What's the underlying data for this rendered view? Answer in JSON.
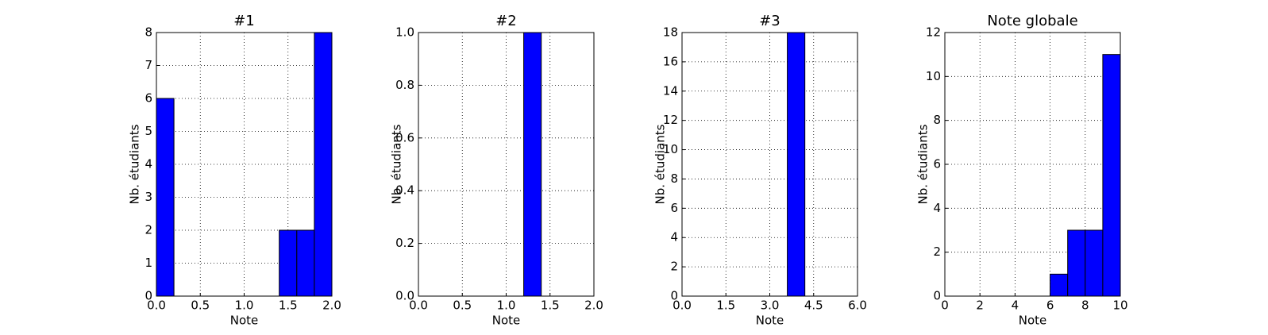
{
  "chart_data": [
    {
      "type": "histogram",
      "title": "#1",
      "xlabel": "Note",
      "ylabel": "Nb. étudiants",
      "bins": [
        0,
        0.2,
        0.4,
        0.6,
        0.8,
        1.0,
        1.2,
        1.4,
        1.6,
        1.8,
        2.0
      ],
      "values": [
        6,
        0,
        0,
        0,
        0,
        0,
        0,
        2,
        2,
        8
      ],
      "color": "#0000ff",
      "xlim": [
        0,
        2
      ],
      "ylim": [
        0,
        8
      ],
      "xticks": [
        {
          "value": 0,
          "label": "0.0"
        },
        {
          "value": 0.5,
          "label": "0.5"
        },
        {
          "value": 1,
          "label": "1.0"
        },
        {
          "value": 1.5,
          "label": "1.5"
        },
        {
          "value": 2,
          "label": "2.0"
        }
      ],
      "yticks": [
        0,
        1,
        2,
        3,
        4,
        5,
        6,
        7,
        8
      ],
      "grid": true
    },
    {
      "type": "histogram",
      "title": "#2",
      "xlabel": "Note",
      "ylabel": "Nb. étudiants",
      "bins": [
        0,
        0.2,
        0.4,
        0.6,
        0.8,
        1.0,
        1.2,
        1.4,
        1.6,
        1.8,
        2.0
      ],
      "values": [
        0,
        0,
        0,
        0,
        0,
        0,
        1,
        0,
        0,
        0
      ],
      "color": "#0000ff",
      "xlim": [
        0,
        2
      ],
      "ylim": [
        0,
        1
      ],
      "xticks": [
        {
          "value": 0,
          "label": "0.0"
        },
        {
          "value": 0.5,
          "label": "0.5"
        },
        {
          "value": 1,
          "label": "1.0"
        },
        {
          "value": 1.5,
          "label": "1.5"
        },
        {
          "value": 2,
          "label": "2.0"
        }
      ],
      "yticks": [
        {
          "value": 0,
          "label": "0.0"
        },
        {
          "value": 0.2,
          "label": "0.2"
        },
        {
          "value": 0.4,
          "label": "0.4"
        },
        {
          "value": 0.6,
          "label": "0.6"
        },
        {
          "value": 0.8,
          "label": "0.8"
        },
        {
          "value": 1,
          "label": "1.0"
        }
      ],
      "grid": true
    },
    {
      "type": "histogram",
      "title": "#3",
      "xlabel": "Note",
      "ylabel": "Nb. étudiants",
      "bins": [
        0,
        0.6,
        1.2,
        1.8,
        2.4,
        3.0,
        3.6,
        4.2,
        4.8,
        5.4,
        6.0
      ],
      "values": [
        0,
        0,
        0,
        0,
        0,
        0,
        18,
        0,
        0,
        0
      ],
      "color": "#0000ff",
      "xlim": [
        0,
        6
      ],
      "ylim": [
        0,
        18
      ],
      "xticks": [
        {
          "value": 0,
          "label": "0.0"
        },
        {
          "value": 1.5,
          "label": "1.5"
        },
        {
          "value": 3,
          "label": "3.0"
        },
        {
          "value": 4.5,
          "label": "4.5"
        },
        {
          "value": 6,
          "label": "6.0"
        }
      ],
      "yticks": [
        0,
        2,
        4,
        6,
        8,
        10,
        12,
        14,
        16,
        18
      ],
      "grid": true
    },
    {
      "type": "histogram",
      "title": "Note globale",
      "xlabel": "Note",
      "ylabel": "Nb. étudiants",
      "bins": [
        0,
        1,
        2,
        3,
        4,
        5,
        6,
        7,
        8,
        9,
        10
      ],
      "values": [
        0,
        0,
        0,
        0,
        0,
        0,
        1,
        3,
        3,
        11
      ],
      "color": "#0000ff",
      "xlim": [
        0,
        10
      ],
      "ylim": [
        0,
        12
      ],
      "xticks": [
        0,
        2,
        4,
        6,
        8,
        10
      ],
      "yticks": [
        0,
        2,
        4,
        6,
        8,
        10,
        12
      ],
      "grid": true
    }
  ]
}
